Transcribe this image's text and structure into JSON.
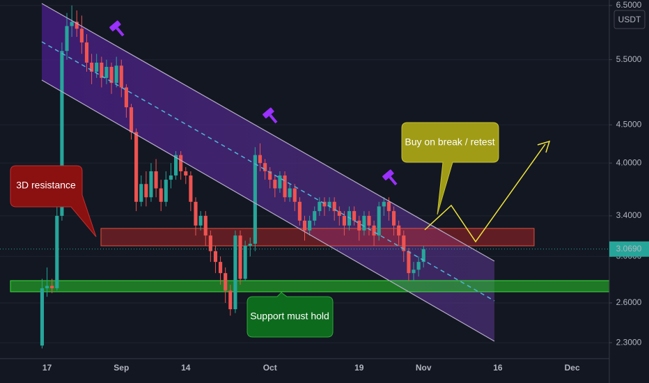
{
  "chart_data": {
    "type": "candlestick",
    "unit": "USDT",
    "log_scale": true,
    "grid": true,
    "up_color": "#26a69a",
    "down_color": "#ef5350",
    "annotations": [
      "3D resistance",
      "Buy on break / retest",
      "Support must hold"
    ],
    "last_price_label": "3.0690",
    "ylim": [
      2.19,
      6.61
    ],
    "yticks": [
      {
        "value": 2.3,
        "label": "2.3000"
      },
      {
        "value": 2.6,
        "label": "2.6000"
      },
      {
        "value": 3.0,
        "label": "3.0000"
      },
      {
        "value": 3.4,
        "label": "3.4000"
      },
      {
        "value": 4.0,
        "label": "4.0000"
      },
      {
        "value": 4.5,
        "label": "4.5000"
      },
      {
        "value": 5.5,
        "label": "5.5000"
      },
      {
        "value": 6.5,
        "label": "6.5000"
      }
    ],
    "categories": [
      null,
      null,
      null,
      null,
      null,
      null,
      null,
      null,
      null,
      "17",
      null,
      null,
      null,
      null,
      null,
      null,
      null,
      null,
      null,
      null,
      null,
      null,
      null,
      null,
      "Sep",
      null,
      null,
      null,
      null,
      null,
      null,
      null,
      null,
      null,
      null,
      null,
      null,
      "14",
      null,
      null,
      null,
      null,
      null,
      null,
      null,
      null,
      null,
      null,
      null,
      null,
      null,
      null,
      null,
      null,
      "Oct",
      null,
      null,
      null,
      null,
      null,
      null,
      null,
      null,
      null,
      null,
      null,
      null,
      null,
      null,
      null,
      null,
      null,
      "19",
      null,
      null,
      null,
      null,
      null,
      null,
      null,
      null,
      null,
      null,
      null,
      null,
      "Nov",
      null,
      null,
      null,
      null,
      null,
      null,
      null,
      null,
      null,
      null,
      null,
      null,
      null,
      null,
      "16",
      null,
      null,
      null,
      null,
      null,
      null,
      null,
      null,
      null,
      null,
      null,
      null,
      null,
      null,
      "Dec",
      null,
      null,
      null,
      null,
      null,
      null,
      null
    ],
    "open": [
      null,
      null,
      null,
      null,
      null,
      null,
      null,
      null,
      2.28,
      2.72,
      2.74,
      2.72,
      3.4,
      5.65,
      6.1,
      6.18,
      6.05,
      5.8,
      5.45,
      5.3,
      5.45,
      5.2,
      5.38,
      5.12,
      5.4,
      5.05,
      4.75,
      4.4,
      3.55,
      3.75,
      3.6,
      3.9,
      3.7,
      3.55,
      3.8,
      3.85,
      4.1,
      3.9,
      3.85,
      3.55,
      3.3,
      3.4,
      3.2,
      3.05,
      2.95,
      2.85,
      2.7,
      2.55,
      3.2,
      2.8,
      3.1,
      3.12,
      4.1,
      4.0,
      3.9,
      3.8,
      3.7,
      3.85,
      3.6,
      3.7,
      3.55,
      3.35,
      3.25,
      3.35,
      3.45,
      3.55,
      3.5,
      3.55,
      3.45,
      3.4,
      3.3,
      3.45,
      3.35,
      3.25,
      3.4,
      3.3,
      3.2,
      3.5,
      3.55,
      3.45,
      3.3,
      3.2,
      3.05,
      2.85,
      2.88,
      2.95,
      null,
      null,
      null,
      null,
      null,
      null,
      null,
      null,
      null,
      null,
      null,
      null,
      null,
      null,
      null,
      null,
      null,
      null,
      null,
      null,
      null,
      null,
      null,
      null,
      null,
      null,
      null,
      null,
      null,
      null,
      null,
      null,
      null,
      null,
      null,
      null,
      null
    ],
    "high": [
      null,
      null,
      null,
      null,
      null,
      null,
      null,
      null,
      2.8,
      2.9,
      2.8,
      3.5,
      5.8,
      6.35,
      6.5,
      6.4,
      6.3,
      5.95,
      5.6,
      5.6,
      5.55,
      5.5,
      5.45,
      5.55,
      5.5,
      5.1,
      4.8,
      4.45,
      3.85,
      3.9,
      4.0,
      4.05,
      3.8,
      3.9,
      4.0,
      4.15,
      4.15,
      3.95,
      3.9,
      3.6,
      3.45,
      3.45,
      3.25,
      3.1,
      3.0,
      2.9,
      2.75,
      3.25,
      3.25,
      3.15,
      3.18,
      4.2,
      4.25,
      4.05,
      3.95,
      3.85,
      3.9,
      3.9,
      3.75,
      3.75,
      3.6,
      3.4,
      3.4,
      3.5,
      3.6,
      3.6,
      3.6,
      3.6,
      3.5,
      3.45,
      3.5,
      3.5,
      3.4,
      3.45,
      3.45,
      3.35,
      3.55,
      3.6,
      3.6,
      3.5,
      3.35,
      3.25,
      3.08,
      2.95,
      3.0,
      3.1,
      null,
      null,
      null,
      null,
      null,
      null,
      null,
      null,
      null,
      null,
      null,
      null,
      null,
      null,
      null,
      null,
      null,
      null,
      null,
      null,
      null,
      null,
      null,
      null,
      null,
      null,
      null,
      null,
      null,
      null,
      null,
      null,
      null,
      null,
      null,
      null,
      null
    ],
    "low": [
      null,
      null,
      null,
      null,
      null,
      null,
      null,
      null,
      2.26,
      2.65,
      2.68,
      2.7,
      3.35,
      5.5,
      5.9,
      5.9,
      5.6,
      5.3,
      5.1,
      5.2,
      5.05,
      5.1,
      4.95,
      5.05,
      4.9,
      4.6,
      4.3,
      3.45,
      3.5,
      3.5,
      3.55,
      3.6,
      3.45,
      3.5,
      3.7,
      3.8,
      3.8,
      3.75,
      3.45,
      3.2,
      3.25,
      3.1,
      2.95,
      2.85,
      2.75,
      2.6,
      2.5,
      2.52,
      2.75,
      2.78,
      3.0,
      3.05,
      3.9,
      3.8,
      3.7,
      3.6,
      3.65,
      3.55,
      3.55,
      3.45,
      3.3,
      3.15,
      3.2,
      3.3,
      3.4,
      3.4,
      3.45,
      3.35,
      3.3,
      3.2,
      3.25,
      3.3,
      3.15,
      3.2,
      3.2,
      3.1,
      3.15,
      3.4,
      3.35,
      3.2,
      3.1,
      2.95,
      2.78,
      2.78,
      2.82,
      2.9,
      null,
      null,
      null,
      null,
      null,
      null,
      null,
      null,
      null,
      null,
      null,
      null,
      null,
      null,
      null,
      null,
      null,
      null,
      null,
      null,
      null,
      null,
      null,
      null,
      null,
      null,
      null,
      null,
      null,
      null,
      null,
      null,
      null,
      null,
      null,
      null,
      null
    ],
    "close": [
      null,
      null,
      null,
      null,
      null,
      null,
      null,
      null,
      2.72,
      2.74,
      2.72,
      3.4,
      5.65,
      6.1,
      6.18,
      6.05,
      5.8,
      5.45,
      5.3,
      5.45,
      5.2,
      5.38,
      5.12,
      5.4,
      5.05,
      4.75,
      4.4,
      3.55,
      3.75,
      3.6,
      3.9,
      3.7,
      3.55,
      3.8,
      3.85,
      4.1,
      3.9,
      3.85,
      3.55,
      3.3,
      3.4,
      3.2,
      3.05,
      2.95,
      2.85,
      2.7,
      2.55,
      3.2,
      2.8,
      3.1,
      3.12,
      4.1,
      4.0,
      3.9,
      3.8,
      3.7,
      3.85,
      3.6,
      3.7,
      3.55,
      3.35,
      3.25,
      3.35,
      3.45,
      3.55,
      3.5,
      3.55,
      3.45,
      3.4,
      3.3,
      3.45,
      3.35,
      3.25,
      3.4,
      3.3,
      3.2,
      3.5,
      3.55,
      3.45,
      3.3,
      3.2,
      3.05,
      2.85,
      2.88,
      2.95,
      3.069,
      null,
      null,
      null,
      null,
      null,
      null,
      null,
      null,
      null,
      null,
      null,
      null,
      null,
      null,
      null,
      null,
      null,
      null,
      null,
      null,
      null,
      null,
      null,
      null,
      null,
      null,
      null,
      null,
      null,
      null,
      null,
      null,
      null,
      null,
      null,
      null,
      null
    ]
  }
}
